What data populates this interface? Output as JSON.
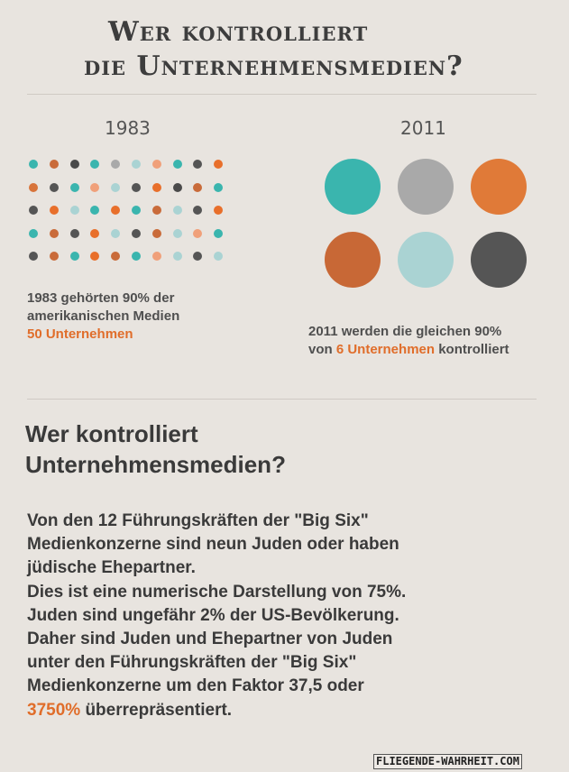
{
  "title": {
    "line1": "Wer kontrolliert",
    "line2": "die Unternehmensmedien?"
  },
  "left": {
    "year": "1983",
    "caption_line1": "1983 gehörten 90% der",
    "caption_line2": "amerikanischen Medien",
    "caption_highlight": "50 Unternehmen",
    "dot_colors": [
      "#3ab5ae",
      "#c96b3a",
      "#4a4a4a",
      "#3ab5ae",
      "#a9a9a9",
      "#aad3d3",
      "#f0a07a",
      "#3ab5ae",
      "#555555",
      "#e86f2b",
      "#d8743a",
      "#555555",
      "#3ab5ae",
      "#f0a07a",
      "#aad3d3",
      "#555555",
      "#e86f2b",
      "#4a4a4a",
      "#c96b3a",
      "#3ab5ae",
      "#555555",
      "#e86f2b",
      "#aad3d3",
      "#3ab5ae",
      "#e86f2b",
      "#3ab5ae",
      "#c96b3a",
      "#aad3d3",
      "#555555",
      "#e86f2b",
      "#3ab5ae",
      "#c96b3a",
      "#555555",
      "#e86f2b",
      "#aad3d3",
      "#555555",
      "#c96b3a",
      "#aad3d3",
      "#f0a07a",
      "#3ab5ae",
      "#555555",
      "#c96b3a",
      "#3ab5ae",
      "#e86f2b",
      "#c96b3a",
      "#3ab5ae",
      "#f0a07a",
      "#aad3d3",
      "#555555",
      "#aad3d3"
    ]
  },
  "right": {
    "year": "2011",
    "caption_line1": "2011 werden die gleichen 90%",
    "caption_pre": "von ",
    "caption_highlight": "6 Unternehmen",
    "caption_post": " kontrolliert",
    "circle_colors": [
      "#3ab5ae",
      "#a9a9a9",
      "#e07a38",
      "#c86836",
      "#aad3d3",
      "#555555"
    ]
  },
  "subtitle": {
    "line1": "Wer kontrolliert",
    "line2": "Unternehmensmedien?"
  },
  "body": {
    "lines": [
      "Von den 12 Führungskräften der \"Big Six\"",
      "Medienkonzerne sind neun Juden oder haben",
      "jüdische Ehepartner.",
      "Dies ist eine numerische Darstellung von 75%.",
      "Juden sind ungefähr 2% der US-Bevölkerung.",
      "Daher sind Juden und Ehepartner von Juden",
      "unter den Führungskräften der \"Big Six\"",
      "Medienkonzerne um den Faktor 37,5 oder"
    ],
    "last_highlight": "3750%",
    "last_rest": " überrepräsentiert."
  },
  "footer": "FLIEGENDE-WAHRHEIT.COM"
}
